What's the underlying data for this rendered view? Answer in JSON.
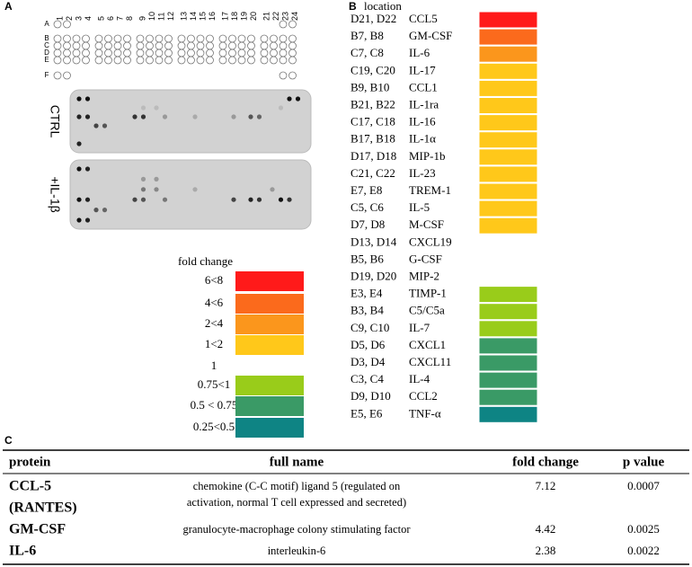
{
  "panel_a": {
    "label": "A",
    "columns": [
      1,
      2,
      3,
      4,
      5,
      6,
      7,
      8,
      9,
      10,
      11,
      12,
      13,
      14,
      15,
      16,
      17,
      18,
      19,
      20,
      21,
      22,
      23,
      24
    ],
    "rows": [
      "A",
      "B",
      "C",
      "D",
      "E",
      "F"
    ],
    "blots": [
      "CTRL",
      "+IL-1β"
    ],
    "legend": {
      "title": "fold change",
      "entries": [
        {
          "label": "6<8",
          "color": "#ff1a1a"
        },
        {
          "label": "4<6",
          "color": "#fb6a1c"
        },
        {
          "label": "2<4",
          "color": "#fb961c"
        },
        {
          "label": "1<2",
          "color": "#ffc81a"
        },
        {
          "label": "1",
          "color": null
        },
        {
          "label": "0.75<1",
          "color": "#99cc1a"
        },
        {
          "label": "0.5 < 0.75",
          "color": "#3a9a66"
        },
        {
          "label": "0.25<0.5",
          "color": "#0e8484"
        }
      ]
    }
  },
  "panel_b": {
    "label": "B",
    "title": "location",
    "rows": [
      {
        "location": "D21, D22",
        "protein": "CCL5",
        "color": "#ff1a1a"
      },
      {
        "location": "B7, B8",
        "protein": "GM-CSF",
        "color": "#fb6a1c"
      },
      {
        "location": "C7, C8",
        "protein": "IL-6",
        "color": "#fb961c"
      },
      {
        "location": "C19, C20",
        "protein": "IL-17",
        "color": "#ffc81a"
      },
      {
        "location": "B9, B10",
        "protein": "CCL1",
        "color": "#ffc81a"
      },
      {
        "location": "B21, B22",
        "protein": "IL-1ra",
        "color": "#ffc81a"
      },
      {
        "location": "C17, C18",
        "protein": "IL-16",
        "color": "#ffc81a"
      },
      {
        "location": "B17, B18",
        "protein": "IL-1α",
        "color": "#ffc81a"
      },
      {
        "location": "D17, D18",
        "protein": "MIP-1b",
        "color": "#ffc81a"
      },
      {
        "location": "C21, C22",
        "protein": "IL-23",
        "color": "#ffc81a"
      },
      {
        "location": "E7, E8",
        "protein": "TREM-1",
        "color": "#ffc81a"
      },
      {
        "location": "C5, C6",
        "protein": "IL-5",
        "color": "#ffc81a"
      },
      {
        "location": "D7, D8",
        "protein": "M-CSF",
        "color": "#ffc81a"
      },
      {
        "location": "D13, D14",
        "protein": "CXCL19",
        "color": null
      },
      {
        "location": "B5, B6",
        "protein": "G-CSF",
        "color": null
      },
      {
        "location": "D19, D20",
        "protein": "MIP-2",
        "color": null
      },
      {
        "location": "E3, E4",
        "protein": "TIMP-1",
        "color": "#99cc1a"
      },
      {
        "location": "B3, B4",
        "protein": "C5/C5a",
        "color": "#99cc1a"
      },
      {
        "location": "C9, C10",
        "protein": "IL-7",
        "color": "#99cc1a"
      },
      {
        "location": "D5, D6",
        "protein": "CXCL1",
        "color": "#3a9a66"
      },
      {
        "location": "D3, D4",
        "protein": "CXCL11",
        "color": "#3a9a66"
      },
      {
        "location": "C3, C4",
        "protein": "IL-4",
        "color": "#3a9a66"
      },
      {
        "location": "D9, D10",
        "protein": "CCL2",
        "color": "#3a9a66"
      },
      {
        "location": "E5, E6",
        "protein": "TNF-α",
        "color": "#0e8484"
      }
    ]
  },
  "panel_c": {
    "label": "C",
    "table": {
      "header": [
        "protein",
        "full name",
        "fold change",
        "p value"
      ],
      "rows": [
        {
          "protein": [
            "CCL-5",
            "(RANTES)"
          ],
          "full_name": [
            "chemokine (C-C motif) ligand 5 (regulated on",
            "activation, normal T cell expressed and secreted)"
          ],
          "fold_change": 7.12,
          "p_value": 0.0007
        },
        {
          "protein": [
            "GM-CSF"
          ],
          "full_name": [
            "granulocyte-macrophage colony stimulating factor"
          ],
          "fold_change": 4.42,
          "p_value": 0.0025
        },
        {
          "protein": [
            "IL-6"
          ],
          "full_name": [
            "interleukin-6"
          ],
          "fold_change": 2.38,
          "p_value": 0.0022
        }
      ]
    }
  }
}
